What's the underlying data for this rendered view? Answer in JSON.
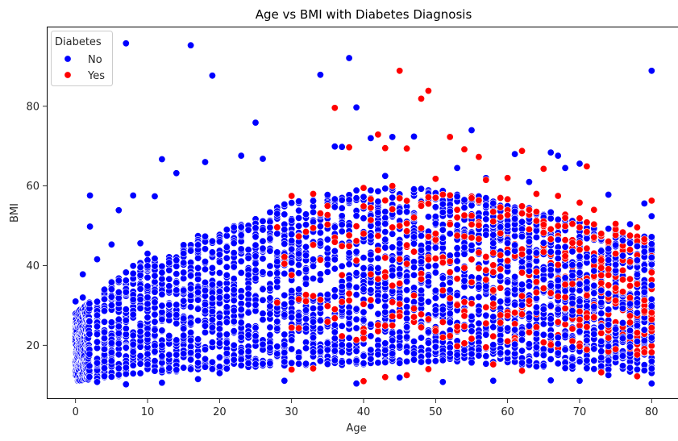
{
  "chart_data": {
    "type": "scatter",
    "title": "Age vs BMI with Diabetes Diagnosis",
    "xlabel": "Age",
    "ylabel": "BMI",
    "xlim": [
      -4,
      84
    ],
    "ylim": [
      6.5,
      100
    ],
    "xticks": [
      0,
      10,
      20,
      30,
      40,
      50,
      60,
      70,
      80
    ],
    "yticks": [
      20,
      40,
      60,
      80
    ],
    "grid": false,
    "legend": {
      "title": "Diabetes",
      "placement": "top-left"
    },
    "series": [
      {
        "name": "No",
        "color": "#0000ff",
        "points": [
          [
            7,
            95.8
          ],
          [
            16,
            95.3
          ],
          [
            19,
            87.7
          ],
          [
            34,
            87.9
          ],
          [
            38,
            92.1
          ],
          [
            39,
            79.7
          ],
          [
            80,
            88.9
          ],
          [
            25,
            75.9
          ],
          [
            55,
            74
          ],
          [
            47,
            72.4
          ],
          [
            41,
            72
          ],
          [
            44,
            72.3
          ],
          [
            61,
            68
          ],
          [
            66,
            68.4
          ],
          [
            67,
            67.6
          ],
          [
            12,
            66.7
          ],
          [
            18,
            66
          ],
          [
            23,
            67.6
          ],
          [
            26,
            66.8
          ],
          [
            37,
            69.8
          ],
          [
            36,
            69.9
          ],
          [
            52,
            72.4
          ],
          [
            70,
            65.6
          ],
          [
            79,
            55.6
          ],
          [
            2,
            57.6
          ],
          [
            8,
            57.6
          ],
          [
            11,
            57.4
          ],
          [
            6,
            53.9
          ],
          [
            2,
            49.8
          ],
          [
            5,
            45.3
          ],
          [
            9,
            45.6
          ],
          [
            3,
            41.6
          ],
          [
            1,
            37.8
          ],
          [
            0,
            31
          ],
          [
            1,
            32
          ],
          [
            10,
            43
          ],
          [
            14,
            63.2
          ],
          [
            43,
            62.5
          ],
          [
            53,
            64.5
          ],
          [
            57,
            62
          ],
          [
            63,
            61
          ],
          [
            68,
            64.5
          ],
          [
            74,
            57.8
          ],
          [
            77,
            50.4
          ],
          [
            80,
            52.4
          ],
          [
            29,
            11.1
          ],
          [
            39,
            10.4
          ],
          [
            51,
            10.8
          ],
          [
            58,
            11.1
          ],
          [
            66,
            11.2
          ],
          [
            70,
            11.1
          ],
          [
            80,
            10.4
          ],
          [
            74,
            12.5
          ],
          [
            7,
            10.2
          ],
          [
            3,
            10.8
          ],
          [
            12,
            10.6
          ],
          [
            45,
            11.9
          ],
          [
            62,
            13.5
          ],
          [
            20,
            13
          ],
          [
            17,
            11.5
          ]
        ]
      },
      {
        "name": "Yes",
        "color": "#ff0000",
        "points": [
          [
            45,
            88.9
          ],
          [
            49,
            83.9
          ],
          [
            48,
            81.9
          ],
          [
            36,
            79.6
          ],
          [
            42,
            72.9
          ],
          [
            43,
            69.5
          ],
          [
            46,
            69.4
          ],
          [
            52,
            72.3
          ],
          [
            54,
            69.2
          ],
          [
            56,
            67.3
          ],
          [
            62,
            68.8
          ],
          [
            71,
            64.9
          ],
          [
            38,
            69.7
          ],
          [
            65,
            64.3
          ],
          [
            80,
            56.3
          ],
          [
            30,
            57.5
          ],
          [
            33,
            58
          ],
          [
            40,
            59.5
          ],
          [
            44,
            60
          ],
          [
            50,
            61.8
          ],
          [
            57,
            61.5
          ],
          [
            60,
            62
          ],
          [
            64,
            58
          ],
          [
            67,
            57.5
          ],
          [
            70,
            55.8
          ],
          [
            72,
            54
          ],
          [
            75,
            50.5
          ],
          [
            78,
            49.6
          ],
          [
            35,
            55
          ],
          [
            48,
            55
          ],
          [
            53,
            54
          ],
          [
            58,
            53.5
          ],
          [
            63,
            54
          ],
          [
            68,
            52
          ],
          [
            73,
            48
          ],
          [
            76,
            45
          ],
          [
            40,
            48
          ],
          [
            45,
            50
          ],
          [
            50,
            48
          ],
          [
            55,
            47
          ],
          [
            60,
            46
          ],
          [
            65,
            45
          ],
          [
            70,
            44
          ],
          [
            75,
            43
          ],
          [
            80,
            42
          ],
          [
            30,
            13.9
          ],
          [
            33,
            14.2
          ],
          [
            40,
            11
          ],
          [
            43,
            12
          ],
          [
            46,
            12.5
          ],
          [
            49,
            14
          ],
          [
            58,
            15.2
          ],
          [
            62,
            13.6
          ],
          [
            78,
            12.2
          ],
          [
            73,
            13.2
          ]
        ]
      }
    ],
    "dense_regions": [
      {
        "series": "No",
        "x_range": [
          0,
          80
        ],
        "age_band": "main"
      }
    ],
    "density_model": {
      "no_upper": [
        [
          0,
          28
        ],
        [
          2,
          31
        ],
        [
          5,
          37
        ],
        [
          10,
          42
        ],
        [
          15,
          46
        ],
        [
          20,
          50
        ],
        [
          25,
          53
        ],
        [
          30,
          56
        ],
        [
          35,
          58
        ],
        [
          40,
          60
        ],
        [
          45,
          60
        ],
        [
          50,
          59
        ],
        [
          55,
          58
        ],
        [
          60,
          56
        ],
        [
          65,
          54
        ],
        [
          70,
          51
        ],
        [
          75,
          49
        ],
        [
          80,
          47
        ]
      ],
      "no_lower": [
        [
          0,
          11
        ],
        [
          5,
          12
        ],
        [
          10,
          13
        ],
        [
          20,
          14
        ],
        [
          30,
          15
        ],
        [
          40,
          15
        ],
        [
          50,
          16
        ],
        [
          60,
          15
        ],
        [
          70,
          14
        ],
        [
          80,
          13
        ]
      ],
      "yes_upper": [
        [
          30,
          52
        ],
        [
          40,
          58
        ],
        [
          50,
          58
        ],
        [
          60,
          57
        ],
        [
          70,
          52
        ],
        [
          80,
          48
        ]
      ],
      "yes_lower": [
        [
          30,
          22
        ],
        [
          40,
          20
        ],
        [
          50,
          20
        ],
        [
          60,
          19
        ],
        [
          70,
          18
        ],
        [
          80,
          17
        ]
      ]
    },
    "legend_entries": [
      "No",
      "Yes"
    ]
  }
}
